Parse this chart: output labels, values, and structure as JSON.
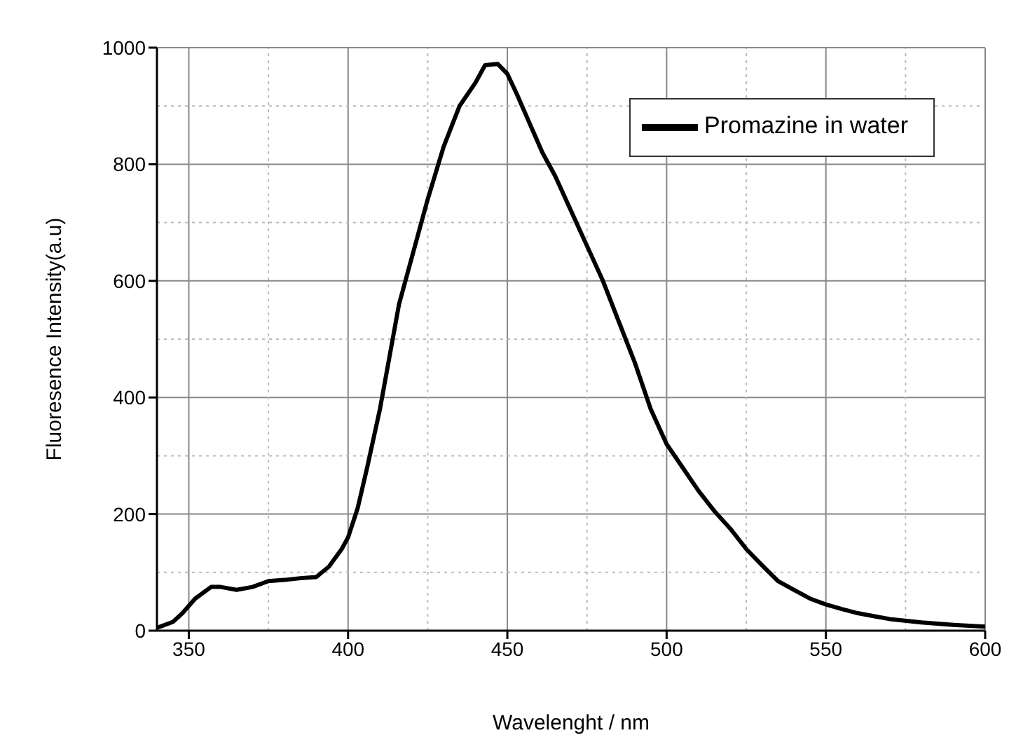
{
  "chart_data": {
    "type": "line",
    "xlabel": "Wavelenght / nm",
    "ylabel": "Fluoresence Intensity(a.u)",
    "xlim": [
      340,
      600
    ],
    "xticks": [
      350,
      400,
      450,
      500,
      550,
      600
    ],
    "ylim": [
      0,
      1000
    ],
    "yticks": [
      0,
      200,
      400,
      600,
      800,
      1000
    ],
    "grid": true,
    "legend": "top right",
    "marker": "none",
    "line_style": "solid",
    "series": [
      {
        "name": "Promazine in water",
        "color": "#000000",
        "x": [
          340,
          345,
          348,
          352,
          357,
          360,
          365,
          370,
          375,
          380,
          385,
          390,
          394,
          398,
          400,
          403,
          406,
          410,
          413,
          416,
          420,
          425,
          430,
          435,
          440,
          443,
          447,
          450,
          453,
          457,
          461,
          465,
          470,
          475,
          480,
          485,
          490,
          495,
          500,
          505,
          510,
          515,
          520,
          525,
          530,
          535,
          540,
          545,
          550,
          555,
          560,
          565,
          570,
          580,
          590,
          600
        ],
        "values": [
          5,
          15,
          30,
          55,
          75,
          75,
          70,
          75,
          85,
          87,
          90,
          92,
          110,
          140,
          160,
          210,
          280,
          380,
          470,
          560,
          640,
          740,
          830,
          900,
          940,
          970,
          972,
          955,
          920,
          870,
          820,
          780,
          720,
          660,
          600,
          530,
          460,
          380,
          320,
          280,
          240,
          205,
          175,
          140,
          112,
          85,
          70,
          55,
          45,
          37,
          30,
          25,
          20,
          14,
          10,
          7
        ]
      }
    ]
  }
}
